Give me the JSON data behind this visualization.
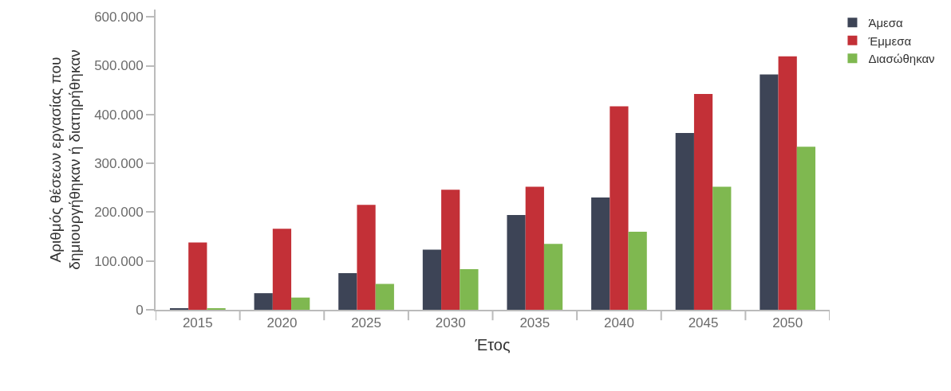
{
  "chart_data": {
    "type": "bar",
    "xlabel": "Έτος",
    "ylabel": "Αριθμός θέσεων εργασίας που\nδημιουργήθηκαν ή διατηρήθηκαν",
    "categories": [
      "2015",
      "2020",
      "2025",
      "2030",
      "2035",
      "2040",
      "2045",
      "2050"
    ],
    "series": [
      {
        "name": "Άμεσα",
        "color": "#3d4456",
        "values": [
          3000,
          34000,
          75000,
          123000,
          194000,
          230000,
          362000,
          482000
        ]
      },
      {
        "name": "Έμμεσα",
        "color": "#c33037",
        "values": [
          138000,
          166000,
          215000,
          246000,
          252000,
          417000,
          442000,
          519000
        ]
      },
      {
        "name": "Διασώθηκαν",
        "color": "#7fb850",
        "values": [
          3000,
          25000,
          53000,
          83000,
          135000,
          160000,
          252000,
          334000
        ]
      }
    ],
    "ylim": [
      0,
      615000
    ],
    "yticks": [
      {
        "value": 0,
        "label": "0"
      },
      {
        "value": 100000,
        "label": "100.000"
      },
      {
        "value": 200000,
        "label": "200.000"
      },
      {
        "value": 300000,
        "label": "300.000"
      },
      {
        "value": 400000,
        "label": "400.000"
      },
      {
        "value": 500000,
        "label": "500.000"
      },
      {
        "value": 600000,
        "label": "600.000"
      }
    ],
    "grid": false,
    "legend": "top right"
  }
}
